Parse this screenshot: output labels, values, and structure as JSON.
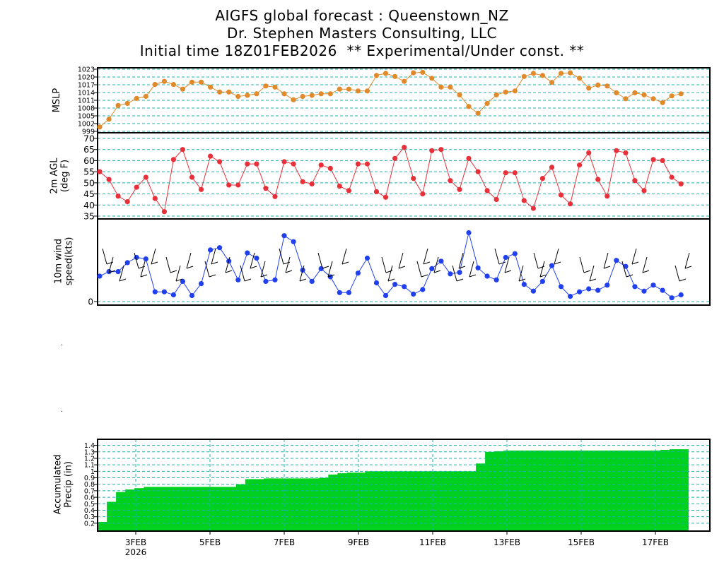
{
  "header": {
    "line1": "AIGFS global forecast : Queenstown_NZ",
    "line2": "Dr. Stephen Masters Consulting, LLC",
    "line3": "Initial time 18Z01FEB2026  ** Experimental/Under const. **"
  },
  "stray_marks": [
    ".",
    "."
  ],
  "colors": {
    "mslp": "#e08a2c",
    "temp": "#e8303a",
    "wind": "#2040f0",
    "precip": "#00d020",
    "grid": "#20b0b0"
  },
  "chart_data": [
    {
      "type": "line",
      "ylabel": "MSLP",
      "ylim": [
        999,
        1023
      ],
      "yticks": [
        "999",
        "1002",
        "1005",
        "1008",
        "1011",
        "1014",
        "1017",
        "1020",
        "1023"
      ],
      "grid": true,
      "x_start": "2026-02-01T18Z",
      "x_step_hours": 6,
      "values": [
        1000.7,
        1003.7,
        1009.0,
        1009.8,
        1011.7,
        1012.5,
        1017.1,
        1018.3,
        1017.1,
        1015.3,
        1018.0,
        1018.0,
        1016.1,
        1014.2,
        1014.2,
        1012.5,
        1012.9,
        1013.5,
        1016.5,
        1016.1,
        1013.5,
        1011.2,
        1012.5,
        1012.9,
        1013.5,
        1013.5,
        1015.3,
        1015.3,
        1014.6,
        1014.6,
        1020.6,
        1021.4,
        1020.2,
        1018.3,
        1021.6,
        1021.8,
        1019.5,
        1016.1,
        1016.1,
        1013.1,
        1008.6,
        1006.0,
        1009.8,
        1013.1,
        1014.2,
        1014.6,
        1020.2,
        1021.4,
        1020.6,
        1017.9,
        1021.4,
        1021.6,
        1019.5,
        1015.7,
        1016.9,
        1016.5,
        1013.9,
        1011.6,
        1013.9,
        1013.1,
        1011.6,
        1010.1,
        1012.7,
        1013.5
      ]
    },
    {
      "type": "line",
      "ylabel": "2m AGL (deg F)",
      "ylim": [
        33,
        70
      ],
      "yticks": [
        "35",
        "40",
        "45",
        "50",
        "55",
        "60",
        "65",
        "70"
      ],
      "grid": true,
      "x_start": "2026-02-01T18Z",
      "x_step_hours": 6,
      "values": [
        55,
        51.5,
        44,
        41.5,
        48,
        52.5,
        43,
        37,
        60.5,
        65,
        52.5,
        47,
        62,
        59.5,
        49,
        49,
        58.5,
        58.5,
        47.5,
        43.8,
        59.5,
        58.5,
        50.5,
        49.5,
        58,
        56.5,
        48.5,
        46.5,
        58.5,
        58.5,
        46,
        43.5,
        61,
        66,
        52,
        45,
        64.5,
        65,
        51,
        47,
        61,
        55,
        46.5,
        42.5,
        54.5,
        54.5,
        42,
        38.5,
        52,
        57,
        44.5,
        40.5,
        58,
        63.5,
        51.5,
        44,
        64.5,
        63.5,
        51,
        46.5,
        60.5,
        60,
        52.5,
        49.5
      ]
    },
    {
      "type": "line",
      "ylabel": "10m wind speed(kts)",
      "ylim": [
        0,
        10
      ],
      "yticks": [
        "0"
      ],
      "grid": true,
      "x_start": "2026-02-01T18Z",
      "x_step_hours": 6,
      "values": [
        3.4,
        4.0,
        4.0,
        5.2,
        5.9,
        5.7,
        1.3,
        1.3,
        0.9,
        2.7,
        0.8,
        2.4,
        6.9,
        7.2,
        5.4,
        2.9,
        6.5,
        5.8,
        2.7,
        2.9,
        8.8,
        8.0,
        4.2,
        2.7,
        4.4,
        3.3,
        1.2,
        1.2,
        3.8,
        5.8,
        2.5,
        0.8,
        2.3,
        2.0,
        1.0,
        1.6,
        4.4,
        5.4,
        3.7,
        3.9,
        9.2,
        4.5,
        3.4,
        2.9,
        5.9,
        6.4,
        2.3,
        1.4,
        2.7,
        4.8,
        2.0,
        0.7,
        1.3,
        1.7,
        1.5,
        2.2,
        5.5,
        4.7,
        2.0,
        1.4,
        2.2,
        1.5,
        0.5,
        0.9
      ]
    },
    {
      "type": "area",
      "ylabel": "Accumulated Precip (in)",
      "ylim": [
        0.1,
        1.45
      ],
      "yticks": [
        "0.2",
        "0.3",
        "0.4",
        "0.5",
        "0.6",
        "0.7",
        "0.8",
        "0.9",
        "1",
        "1.1",
        "1.2",
        "1.3",
        "1.4"
      ],
      "grid": true,
      "x_start": "2026-02-01T18Z",
      "x_step_hours": 6,
      "xticks": [
        "3FEB",
        "5FEB",
        "7FEB",
        "9FEB",
        "11FEB",
        "13FEB",
        "15FEB",
        "17FEB"
      ],
      "year_label": "2026",
      "values": [
        0.22,
        0.53,
        0.68,
        0.72,
        0.74,
        0.76,
        0.76,
        0.76,
        0.76,
        0.76,
        0.76,
        0.76,
        0.76,
        0.76,
        0.76,
        0.8,
        0.88,
        0.88,
        0.89,
        0.89,
        0.89,
        0.89,
        0.89,
        0.89,
        0.9,
        0.95,
        0.97,
        0.98,
        0.98,
        1.0,
        1.0,
        1.0,
        1.0,
        1.0,
        1.0,
        1.0,
        1.0,
        1.0,
        1.0,
        1.0,
        1.0,
        1.12,
        1.3,
        1.31,
        1.32,
        1.32,
        1.32,
        1.32,
        1.32,
        1.32,
        1.32,
        1.32,
        1.32,
        1.32,
        1.32,
        1.32,
        1.32,
        1.32,
        1.32,
        1.32,
        1.32,
        1.33,
        1.34,
        1.34
      ]
    }
  ]
}
